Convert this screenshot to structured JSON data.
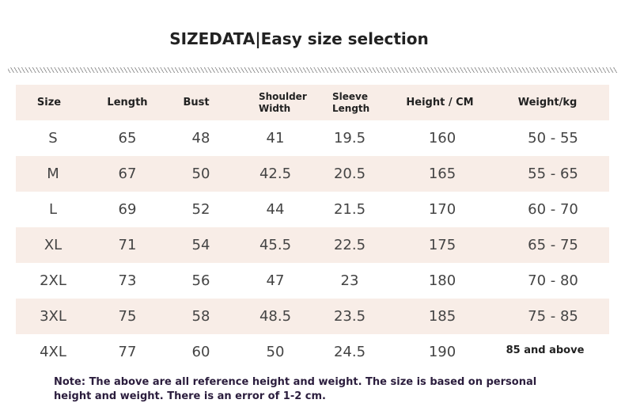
{
  "header": {
    "title": "SIZEDATA|Easy size selection"
  },
  "table": {
    "columns": [
      "Size",
      "Length",
      "Bust",
      "Shoulder Width",
      "Sleeve Length",
      "Height / CM",
      "Weight/kg"
    ],
    "rows": [
      [
        "S",
        "65",
        "48",
        "41",
        "19.5",
        "160",
        "50 - 55"
      ],
      [
        "M",
        "67",
        "50",
        "42.5",
        "20.5",
        "165",
        "55 - 65"
      ],
      [
        "L",
        "69",
        "52",
        "44",
        "21.5",
        "170",
        "60 - 70"
      ],
      [
        "XL",
        "71",
        "54",
        "45.5",
        "22.5",
        "175",
        "65 - 75"
      ],
      [
        "2XL",
        "73",
        "56",
        "47",
        "23",
        "180",
        "70 - 80"
      ],
      [
        "3XL",
        "75",
        "58",
        "48.5",
        "23.5",
        "185",
        "75 - 85"
      ],
      [
        "4XL",
        "77",
        "60",
        "50",
        "24.5",
        "190",
        "85 and above"
      ]
    ]
  },
  "note": "Note: The above are all reference height and weight. The size is based on personal height and weight. There is an error of 1-2 cm."
}
